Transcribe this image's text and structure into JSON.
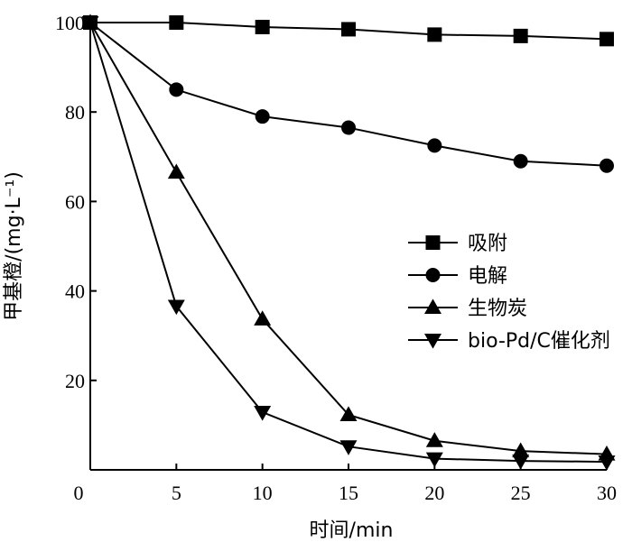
{
  "chart_data": {
    "type": "line",
    "xlabel": "时间/min",
    "ylabel": "甲基橙/(mg·L⁻¹)",
    "xlim": [
      0,
      30
    ],
    "ylim": [
      0,
      100
    ],
    "x_ticks": [
      "0",
      "5",
      "10",
      "15",
      "20",
      "25",
      "30"
    ],
    "y_ticks": [
      "20",
      "40",
      "60",
      "80",
      "100"
    ],
    "grid": false,
    "legend_position": "center-right",
    "x": [
      0,
      5,
      10,
      15,
      20,
      25,
      30
    ],
    "series": [
      {
        "name": "吸附",
        "marker": "square",
        "values": [
          100,
          100,
          99,
          98.5,
          97.3,
          97,
          96.3
        ]
      },
      {
        "name": "电解",
        "marker": "circle",
        "values": [
          100,
          85,
          79,
          76.5,
          72.5,
          69,
          68
        ]
      },
      {
        "name": "生物炭",
        "marker": "triangle-up",
        "values": [
          100,
          66.5,
          33.7,
          12.3,
          6.5,
          4.2,
          3.5
        ]
      },
      {
        "name": "bio-Pd/C催化剂",
        "marker": "triangle-down",
        "values": [
          100,
          36.6,
          12.9,
          5.2,
          2.5,
          2,
          1.8
        ]
      }
    ]
  }
}
